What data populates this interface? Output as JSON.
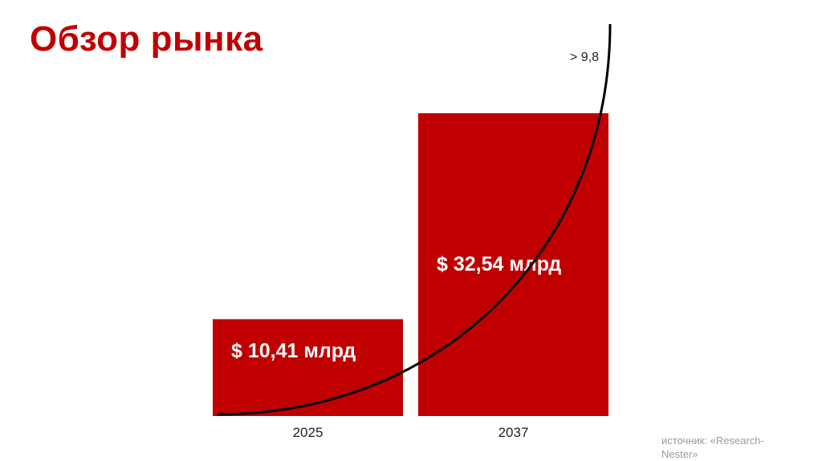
{
  "slide": {
    "title": "Обзор рынка",
    "source": "источник: «Research-Nester»"
  },
  "colors": {
    "accent": "#c00000",
    "curve": "#000000",
    "bar_text": "#ffffff"
  },
  "chart_data": {
    "type": "bar",
    "categories": [
      "2025",
      "2037"
    ],
    "values": [
      10.41,
      32.54
    ],
    "data_labels": [
      "$ 10,41 млрд",
      "$ 32,54 млрд"
    ],
    "annotation": "> 9,8",
    "title": "",
    "xlabel": "",
    "ylabel": "",
    "ylim": [
      0,
      32.54
    ],
    "grid": false,
    "legend": "none"
  }
}
